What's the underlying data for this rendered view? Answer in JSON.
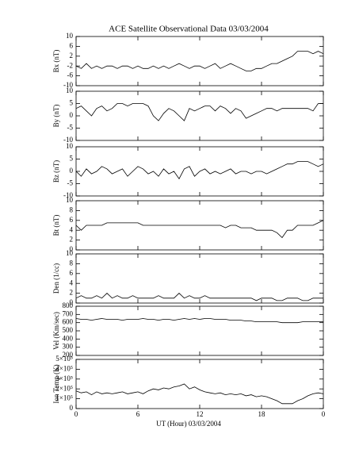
{
  "title": "ACE Satellite Observational Data   03/03/2004",
  "xlabel": "UT (Hour)   03/03/2004",
  "xlim": [
    0,
    24
  ],
  "xticks": [
    0,
    6,
    12,
    18,
    {
      "value": 24,
      "label": "0"
    }
  ],
  "x": [
    0,
    0.5,
    1,
    1.5,
    2,
    2.5,
    3,
    3.5,
    4,
    4.5,
    5,
    5.5,
    6,
    6.5,
    7,
    7.5,
    8,
    8.5,
    9,
    9.5,
    10,
    10.5,
    11,
    11.5,
    12,
    12.5,
    13,
    13.5,
    14,
    14.5,
    15,
    15.5,
    16,
    16.5,
    17,
    17.5,
    18,
    18.5,
    19,
    19.5,
    20,
    20.5,
    21,
    21.5,
    22,
    22.5,
    23,
    23.5,
    24
  ],
  "chart_data": [
    {
      "type": "line",
      "ylabel": "Bx (nT)",
      "color": "#000000",
      "ylim": [
        -10,
        10
      ],
      "yticks": [
        -10,
        -6,
        -2,
        2,
        6,
        10
      ],
      "values": [
        -2,
        -3,
        -1,
        -3,
        -2,
        -3,
        -2,
        -2,
        -3,
        -2,
        -2,
        -3,
        -2,
        -3,
        -3,
        -2,
        -3,
        -2,
        -3,
        -2,
        -1,
        -2,
        -3,
        -2,
        -2,
        -3,
        -2,
        -1,
        -3,
        -2,
        -1,
        -2,
        -3,
        -4,
        -4,
        -3,
        -3,
        -2,
        -1,
        -1,
        0,
        1,
        2,
        4,
        4,
        4,
        3,
        4,
        3
      ]
    },
    {
      "type": "line",
      "ylabel": "By (nT)",
      "color": "#000000",
      "ylim": [
        -10,
        10
      ],
      "yticks": [
        -10,
        -5,
        0,
        5,
        10
      ],
      "values": [
        3,
        4,
        2,
        0,
        3,
        4,
        2,
        3,
        5,
        5,
        4,
        5,
        5,
        5,
        4,
        0,
        -2,
        1,
        3,
        2,
        0,
        -2,
        3,
        2,
        3,
        4,
        4,
        2,
        4,
        3,
        1,
        3,
        2,
        -1,
        0,
        1,
        2,
        3,
        3,
        2,
        3,
        3,
        3,
        3,
        3,
        3,
        2,
        5,
        5
      ]
    },
    {
      "type": "line",
      "ylabel": "Bz (nT)",
      "color": "#000000",
      "ylim": [
        -10,
        10
      ],
      "yticks": [
        -10,
        -5,
        0,
        5,
        10
      ],
      "values": [
        0,
        -2,
        1,
        -1,
        0,
        2,
        1,
        -1,
        0,
        1,
        -2,
        0,
        2,
        1,
        -1,
        0,
        -2,
        1,
        -1,
        0,
        -3,
        1,
        2,
        -2,
        0,
        1,
        -1,
        0,
        -1,
        0,
        1,
        -1,
        0,
        0,
        -1,
        0,
        0,
        -1,
        0,
        1,
        2,
        3,
        3,
        4,
        4,
        4,
        3,
        2,
        3
      ]
    },
    {
      "type": "line",
      "ylabel": "Bt (nT)",
      "color": "#000000",
      "ylim": [
        0,
        10
      ],
      "yticks": [
        0,
        2,
        4,
        6,
        8,
        10
      ],
      "values": [
        5,
        4,
        5,
        5,
        5,
        5,
        5.5,
        5.5,
        5.5,
        5.5,
        5.5,
        5.5,
        5.5,
        5,
        5,
        5,
        5,
        5,
        5,
        5,
        5,
        5,
        5,
        5,
        5,
        5,
        5,
        5,
        5,
        4.5,
        5,
        5,
        4.5,
        4.5,
        4.5,
        4,
        4,
        4,
        4,
        3.5,
        2.5,
        4,
        4,
        5,
        5,
        5,
        5,
        5.5,
        6
      ]
    },
    {
      "type": "line",
      "ylabel": "Den (1/cc)",
      "color": "#000000",
      "ylim": [
        0,
        10
      ],
      "yticks": [
        0,
        2,
        4,
        6,
        8,
        10
      ],
      "values": [
        1,
        1.5,
        1,
        1,
        1.5,
        1,
        2,
        1,
        1.5,
        1,
        1,
        1.5,
        1,
        1,
        1,
        1,
        1.5,
        1,
        1,
        1,
        2,
        1,
        1.5,
        1,
        1,
        1.5,
        1,
        1,
        1,
        1,
        1,
        1,
        1,
        1,
        1,
        0.5,
        1,
        1,
        1,
        0.5,
        0.5,
        1,
        1,
        1,
        0.5,
        0.5,
        1,
        1,
        1
      ]
    },
    {
      "type": "line",
      "ylabel": "Vel (Km/sec)",
      "color": "#000000",
      "ylim": [
        200,
        800
      ],
      "yticks": [
        200,
        300,
        400,
        500,
        600,
        700,
        800
      ],
      "values": [
        650,
        640,
        640,
        630,
        640,
        650,
        640,
        640,
        640,
        630,
        640,
        640,
        640,
        650,
        640,
        640,
        630,
        640,
        640,
        630,
        640,
        650,
        640,
        650,
        640,
        650,
        650,
        640,
        640,
        640,
        630,
        630,
        630,
        620,
        620,
        610,
        610,
        610,
        610,
        610,
        600,
        600,
        600,
        600,
        610,
        610,
        610,
        610,
        610
      ]
    },
    {
      "type": "line",
      "ylabel": "Ion Temp (K)",
      "color": "#000000",
      "ylim": [
        0,
        500000
      ],
      "yticks": [
        0,
        {
          "value": 100000,
          "label": "1×10⁵"
        },
        {
          "value": 200000,
          "label": "2×10⁵"
        },
        {
          "value": 300000,
          "label": "3×10⁵"
        },
        {
          "value": 400000,
          "label": "4×10⁵"
        },
        {
          "value": 500000,
          "label": "5×10⁵"
        }
      ],
      "values": [
        180000,
        160000,
        170000,
        140000,
        170000,
        150000,
        160000,
        150000,
        160000,
        170000,
        150000,
        160000,
        170000,
        150000,
        180000,
        200000,
        190000,
        210000,
        200000,
        220000,
        230000,
        250000,
        200000,
        220000,
        190000,
        170000,
        160000,
        150000,
        160000,
        140000,
        150000,
        140000,
        150000,
        130000,
        140000,
        120000,
        130000,
        120000,
        100000,
        80000,
        50000,
        50000,
        50000,
        80000,
        100000,
        130000,
        150000,
        160000,
        150000
      ]
    }
  ]
}
